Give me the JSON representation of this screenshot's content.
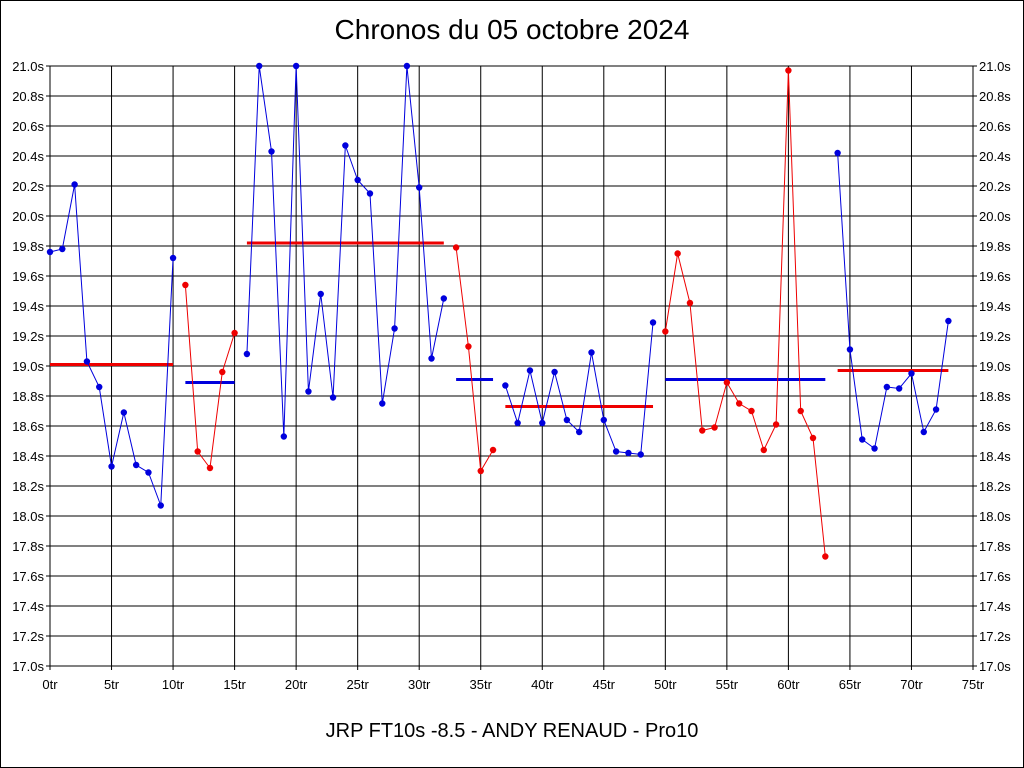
{
  "chart_data": {
    "type": "line",
    "title": "Chronos du 05 octobre 2024",
    "footer": "JRP FT10s -8.5 - ANDY RENAUD - Pro10",
    "xlabel": "",
    "ylabel": "",
    "xlim": [
      0,
      75
    ],
    "ylim": [
      17.0,
      21.0
    ],
    "grid": true,
    "x_ticks": [
      "0tr",
      "5tr",
      "10tr",
      "15tr",
      "20tr",
      "25tr",
      "30tr",
      "35tr",
      "40tr",
      "45tr",
      "50tr",
      "55tr",
      "60tr",
      "65tr",
      "70tr",
      "75tr"
    ],
    "y_ticks": [
      "17.0s",
      "17.2s",
      "17.4s",
      "17.6s",
      "17.8s",
      "18.0s",
      "18.2s",
      "18.4s",
      "18.6s",
      "18.8s",
      "19.0s",
      "19.2s",
      "19.4s",
      "19.6s",
      "19.8s",
      "20.0s",
      "20.2s",
      "20.4s",
      "20.6s",
      "20.8s",
      "21.0s"
    ],
    "colors": {
      "blue": "#0000dd",
      "red": "#ee0000",
      "grid": "#000000"
    },
    "series": [
      {
        "color": "blue",
        "x": [
          0,
          1,
          2,
          3,
          4,
          5,
          6,
          7,
          8,
          9,
          10
        ],
        "y": [
          19.76,
          19.78,
          20.21,
          19.03,
          18.86,
          18.33,
          18.69,
          18.34,
          18.29,
          18.07,
          19.72
        ]
      },
      {
        "color": "red",
        "x": [
          11,
          12,
          13,
          14,
          15
        ],
        "y": [
          19.54,
          18.43,
          18.32,
          18.96,
          19.22
        ]
      },
      {
        "color": "blue",
        "x": [
          16,
          17,
          18,
          19,
          20,
          21,
          22,
          23,
          24,
          25,
          26,
          27,
          28,
          29,
          30,
          31,
          32
        ],
        "y": [
          19.08,
          21.0,
          20.43,
          18.53,
          21.0,
          18.83,
          19.48,
          18.79,
          20.47,
          20.24,
          20.15,
          18.75,
          19.25,
          21.0,
          20.19,
          19.05,
          19.45
        ]
      },
      {
        "color": "red",
        "x": [
          33,
          34,
          35,
          36
        ],
        "y": [
          19.79,
          19.13,
          18.3,
          18.44
        ]
      },
      {
        "color": "blue",
        "x": [
          37,
          38,
          39,
          40,
          41,
          42,
          43,
          44,
          45,
          46,
          47,
          48,
          49
        ],
        "y": [
          18.87,
          18.62,
          18.97,
          18.62,
          18.96,
          18.64,
          18.56,
          19.09,
          18.64,
          18.43,
          18.42,
          18.41,
          19.29
        ]
      },
      {
        "color": "red",
        "x": [
          50,
          51,
          52,
          53,
          54,
          55,
          56,
          57,
          58,
          59,
          60,
          61,
          62,
          63
        ],
        "y": [
          19.23,
          19.75,
          19.42,
          18.57,
          18.59,
          18.89,
          18.75,
          18.7,
          18.44,
          18.61,
          20.97,
          18.7,
          18.52,
          17.73
        ]
      },
      {
        "color": "blue",
        "x": [
          64,
          65,
          66,
          67,
          68,
          69,
          70,
          71,
          72,
          73
        ],
        "y": [
          20.42,
          19.11,
          18.51,
          18.45,
          18.86,
          18.85,
          18.95,
          18.56,
          18.71,
          19.3
        ]
      }
    ],
    "averages": [
      {
        "color": "red",
        "x": [
          0,
          10
        ],
        "y": 19.01
      },
      {
        "color": "blue",
        "x": [
          11,
          15
        ],
        "y": 18.89
      },
      {
        "color": "red",
        "x": [
          16,
          32
        ],
        "y": 19.82
      },
      {
        "color": "blue",
        "x": [
          33,
          36
        ],
        "y": 18.91
      },
      {
        "color": "red",
        "x": [
          37,
          49
        ],
        "y": 18.73
      },
      {
        "color": "blue",
        "x": [
          50,
          63
        ],
        "y": 18.91
      },
      {
        "color": "red",
        "x": [
          64,
          73
        ],
        "y": 18.97
      }
    ]
  }
}
